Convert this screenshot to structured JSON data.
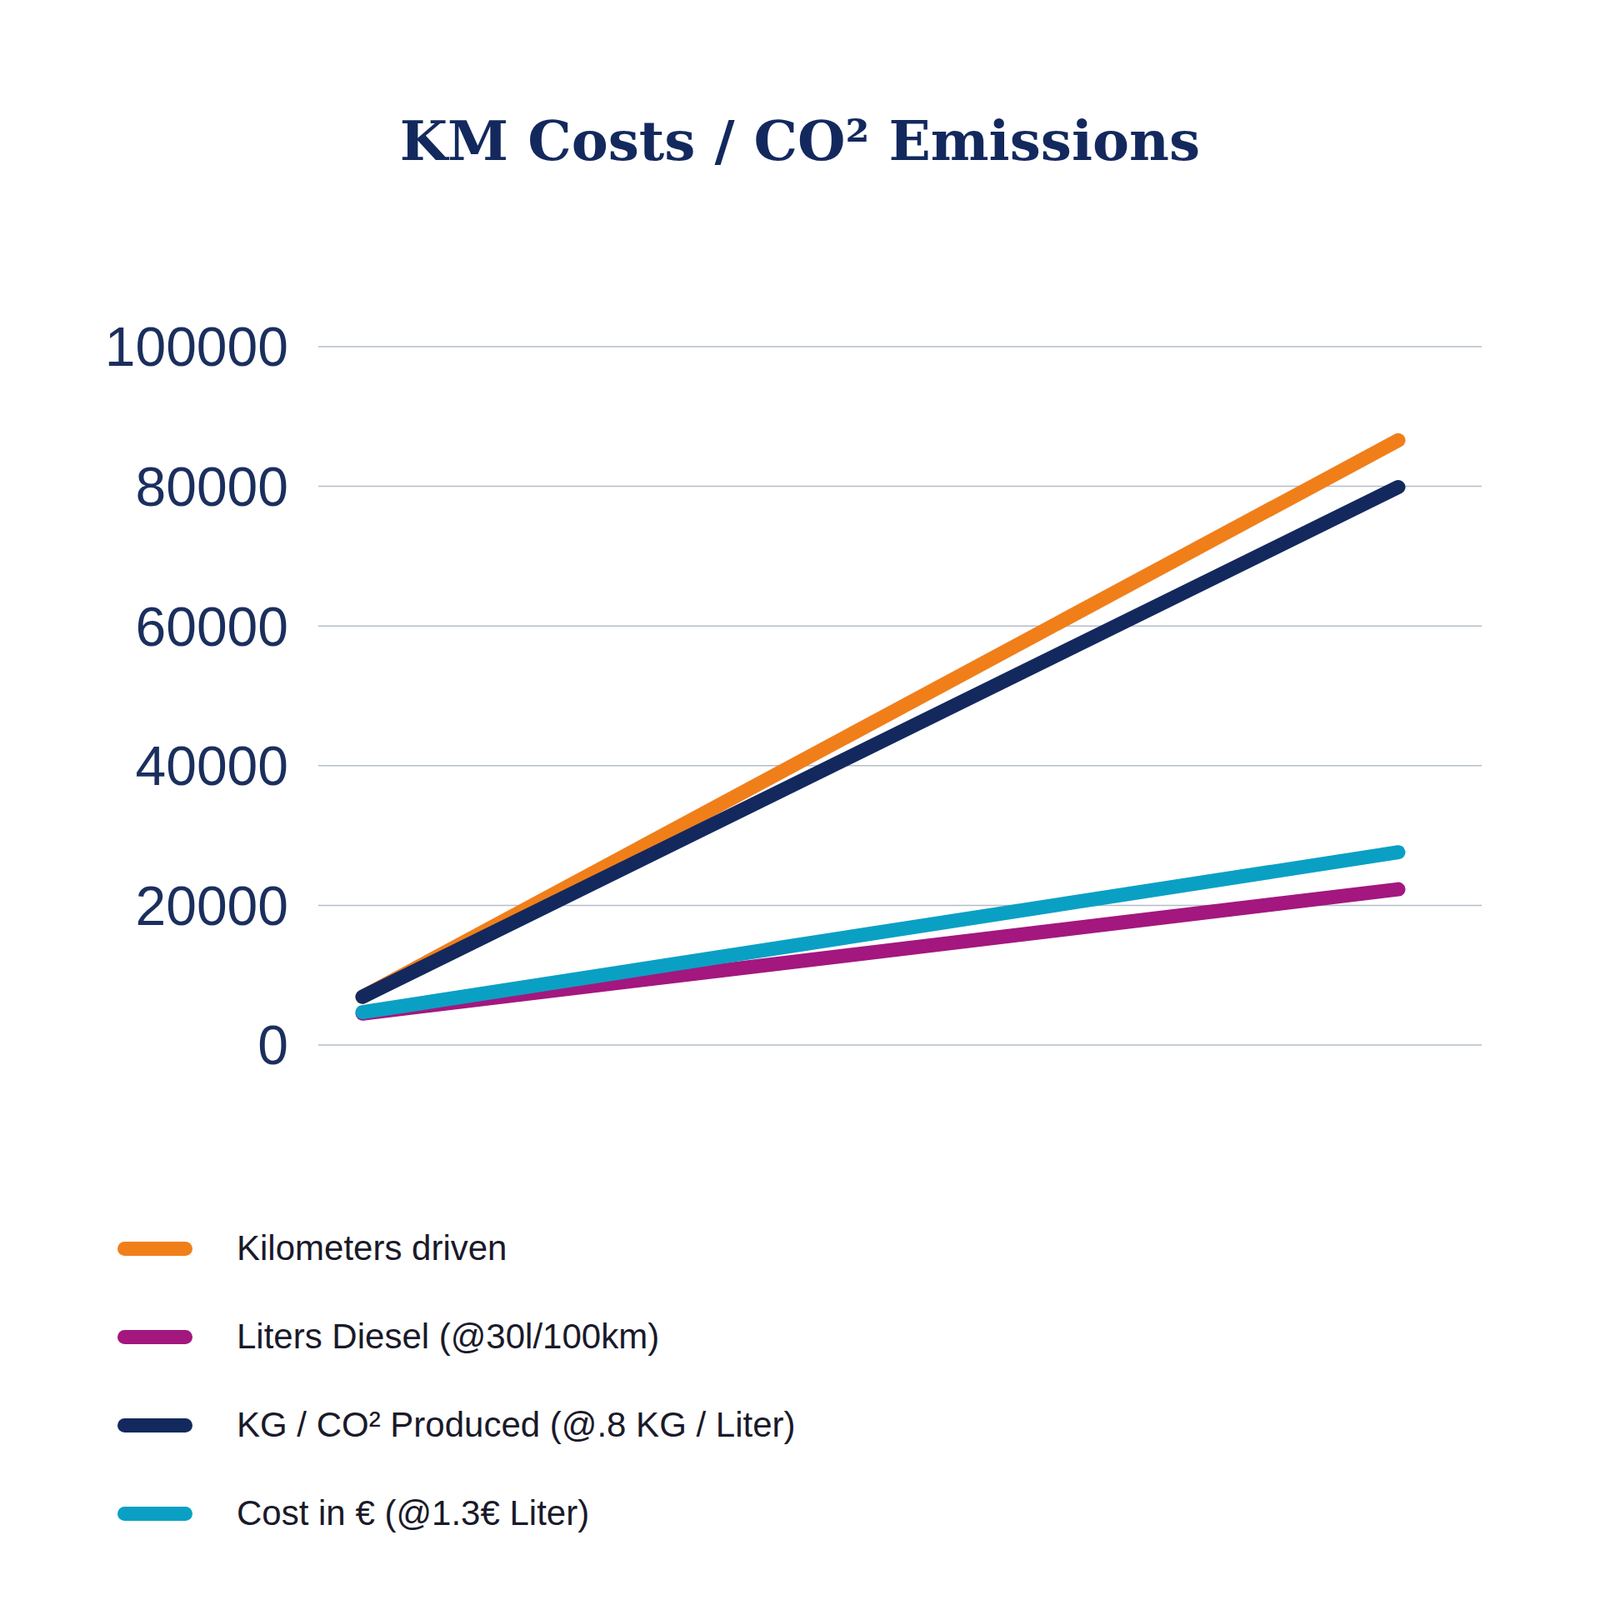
{
  "chart_data": {
    "type": "line",
    "title": "KM Costs / CO² Emissions",
    "categories": [
      null,
      null
    ],
    "series": [
      {
        "name": "Kilometers driven",
        "color": "#f07f1a",
        "values": [
          6900,
          86600
        ]
      },
      {
        "name": "Liters Diesel (@30l/100km)",
        "color": "#a3177f",
        "values": [
          4500,
          22300
        ]
      },
      {
        "name": "KG / CO² Produced (@.8 KG / Liter)",
        "color": "#13295e",
        "values": [
          6900,
          79900
        ]
      },
      {
        "name": "Cost in € (@1.3€ Liter)",
        "color": "#0aa0c4",
        "values": [
          4700,
          27600
        ]
      }
    ],
    "ylim": [
      0,
      100000
    ],
    "yticks": [
      0,
      20000,
      40000,
      60000,
      80000,
      100000
    ],
    "grid": true,
    "tick_labels": "y",
    "legend": "bottom"
  }
}
